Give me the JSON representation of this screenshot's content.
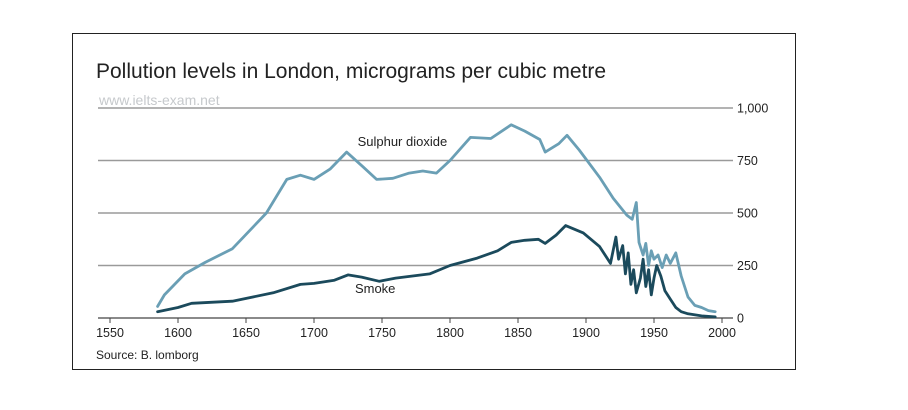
{
  "chart_data": {
    "type": "line",
    "title": "Pollution levels in London, micrograms per cubic metre",
    "source": "Source: B. lomborg",
    "watermark": "www.ielts-exam.net",
    "xlim": [
      1550,
      2000
    ],
    "ylim": [
      0,
      1000
    ],
    "x_ticks": [
      1550,
      1600,
      1650,
      1700,
      1750,
      1800,
      1850,
      1900,
      1950,
      2000
    ],
    "x_tick_labels": [
      "1550",
      "1600",
      "1650",
      "1700",
      "1750",
      "1800",
      "1850",
      "1900",
      "1950",
      "2000"
    ],
    "y_ticks": [
      0,
      250,
      500,
      750,
      1000
    ],
    "y_tick_labels": [
      "0",
      "250",
      "500",
      "750",
      "1,000"
    ],
    "grid": true,
    "y_axis_side": "right",
    "series": [
      {
        "name": "Sulphur dioxide",
        "color": "#6a9fb5",
        "points": [
          [
            1585,
            55
          ],
          [
            1590,
            110
          ],
          [
            1605,
            210
          ],
          [
            1620,
            265
          ],
          [
            1640,
            330
          ],
          [
            1665,
            500
          ],
          [
            1680,
            660
          ],
          [
            1690,
            680
          ],
          [
            1700,
            660
          ],
          [
            1712,
            710
          ],
          [
            1724,
            790
          ],
          [
            1736,
            720
          ],
          [
            1746,
            660
          ],
          [
            1758,
            665
          ],
          [
            1770,
            690
          ],
          [
            1780,
            700
          ],
          [
            1790,
            690
          ],
          [
            1800,
            750
          ],
          [
            1815,
            860
          ],
          [
            1830,
            855
          ],
          [
            1845,
            920
          ],
          [
            1855,
            890
          ],
          [
            1866,
            850
          ],
          [
            1870,
            790
          ],
          [
            1880,
            830
          ],
          [
            1886,
            870
          ],
          [
            1895,
            800
          ],
          [
            1910,
            670
          ],
          [
            1920,
            570
          ],
          [
            1930,
            490
          ],
          [
            1934,
            470
          ],
          [
            1937,
            550
          ],
          [
            1939,
            360
          ],
          [
            1942,
            300
          ],
          [
            1944,
            355
          ],
          [
            1946,
            250
          ],
          [
            1948,
            320
          ],
          [
            1950,
            280
          ],
          [
            1953,
            300
          ],
          [
            1956,
            240
          ],
          [
            1959,
            300
          ],
          [
            1962,
            260
          ],
          [
            1966,
            310
          ],
          [
            1970,
            200
          ],
          [
            1975,
            100
          ],
          [
            1980,
            60
          ],
          [
            1985,
            50
          ],
          [
            1990,
            35
          ],
          [
            1995,
            30
          ]
        ]
      },
      {
        "name": "Smoke",
        "color": "#1b4a5c",
        "points": [
          [
            1585,
            30
          ],
          [
            1600,
            50
          ],
          [
            1610,
            70
          ],
          [
            1640,
            80
          ],
          [
            1670,
            120
          ],
          [
            1690,
            160
          ],
          [
            1700,
            165
          ],
          [
            1715,
            180
          ],
          [
            1725,
            205
          ],
          [
            1735,
            195
          ],
          [
            1748,
            175
          ],
          [
            1760,
            190
          ],
          [
            1785,
            210
          ],
          [
            1800,
            250
          ],
          [
            1820,
            285
          ],
          [
            1835,
            320
          ],
          [
            1845,
            360
          ],
          [
            1855,
            370
          ],
          [
            1865,
            375
          ],
          [
            1870,
            355
          ],
          [
            1878,
            395
          ],
          [
            1885,
            440
          ],
          [
            1898,
            405
          ],
          [
            1910,
            340
          ],
          [
            1918,
            260
          ],
          [
            1922,
            385
          ],
          [
            1924,
            280
          ],
          [
            1927,
            345
          ],
          [
            1929,
            210
          ],
          [
            1931,
            310
          ],
          [
            1933,
            160
          ],
          [
            1935,
            230
          ],
          [
            1937,
            120
          ],
          [
            1940,
            190
          ],
          [
            1942,
            280
          ],
          [
            1944,
            150
          ],
          [
            1946,
            230
          ],
          [
            1948,
            110
          ],
          [
            1950,
            190
          ],
          [
            1952,
            250
          ],
          [
            1955,
            200
          ],
          [
            1958,
            130
          ],
          [
            1962,
            90
          ],
          [
            1966,
            50
          ],
          [
            1970,
            30
          ],
          [
            1975,
            20
          ],
          [
            1985,
            10
          ],
          [
            1995,
            5
          ]
        ]
      }
    ],
    "annotations": [
      {
        "text": "Sulphur dioxide",
        "x": 1765,
        "y": 820
      },
      {
        "text": "Smoke",
        "x": 1745,
        "y": 120
      }
    ]
  }
}
